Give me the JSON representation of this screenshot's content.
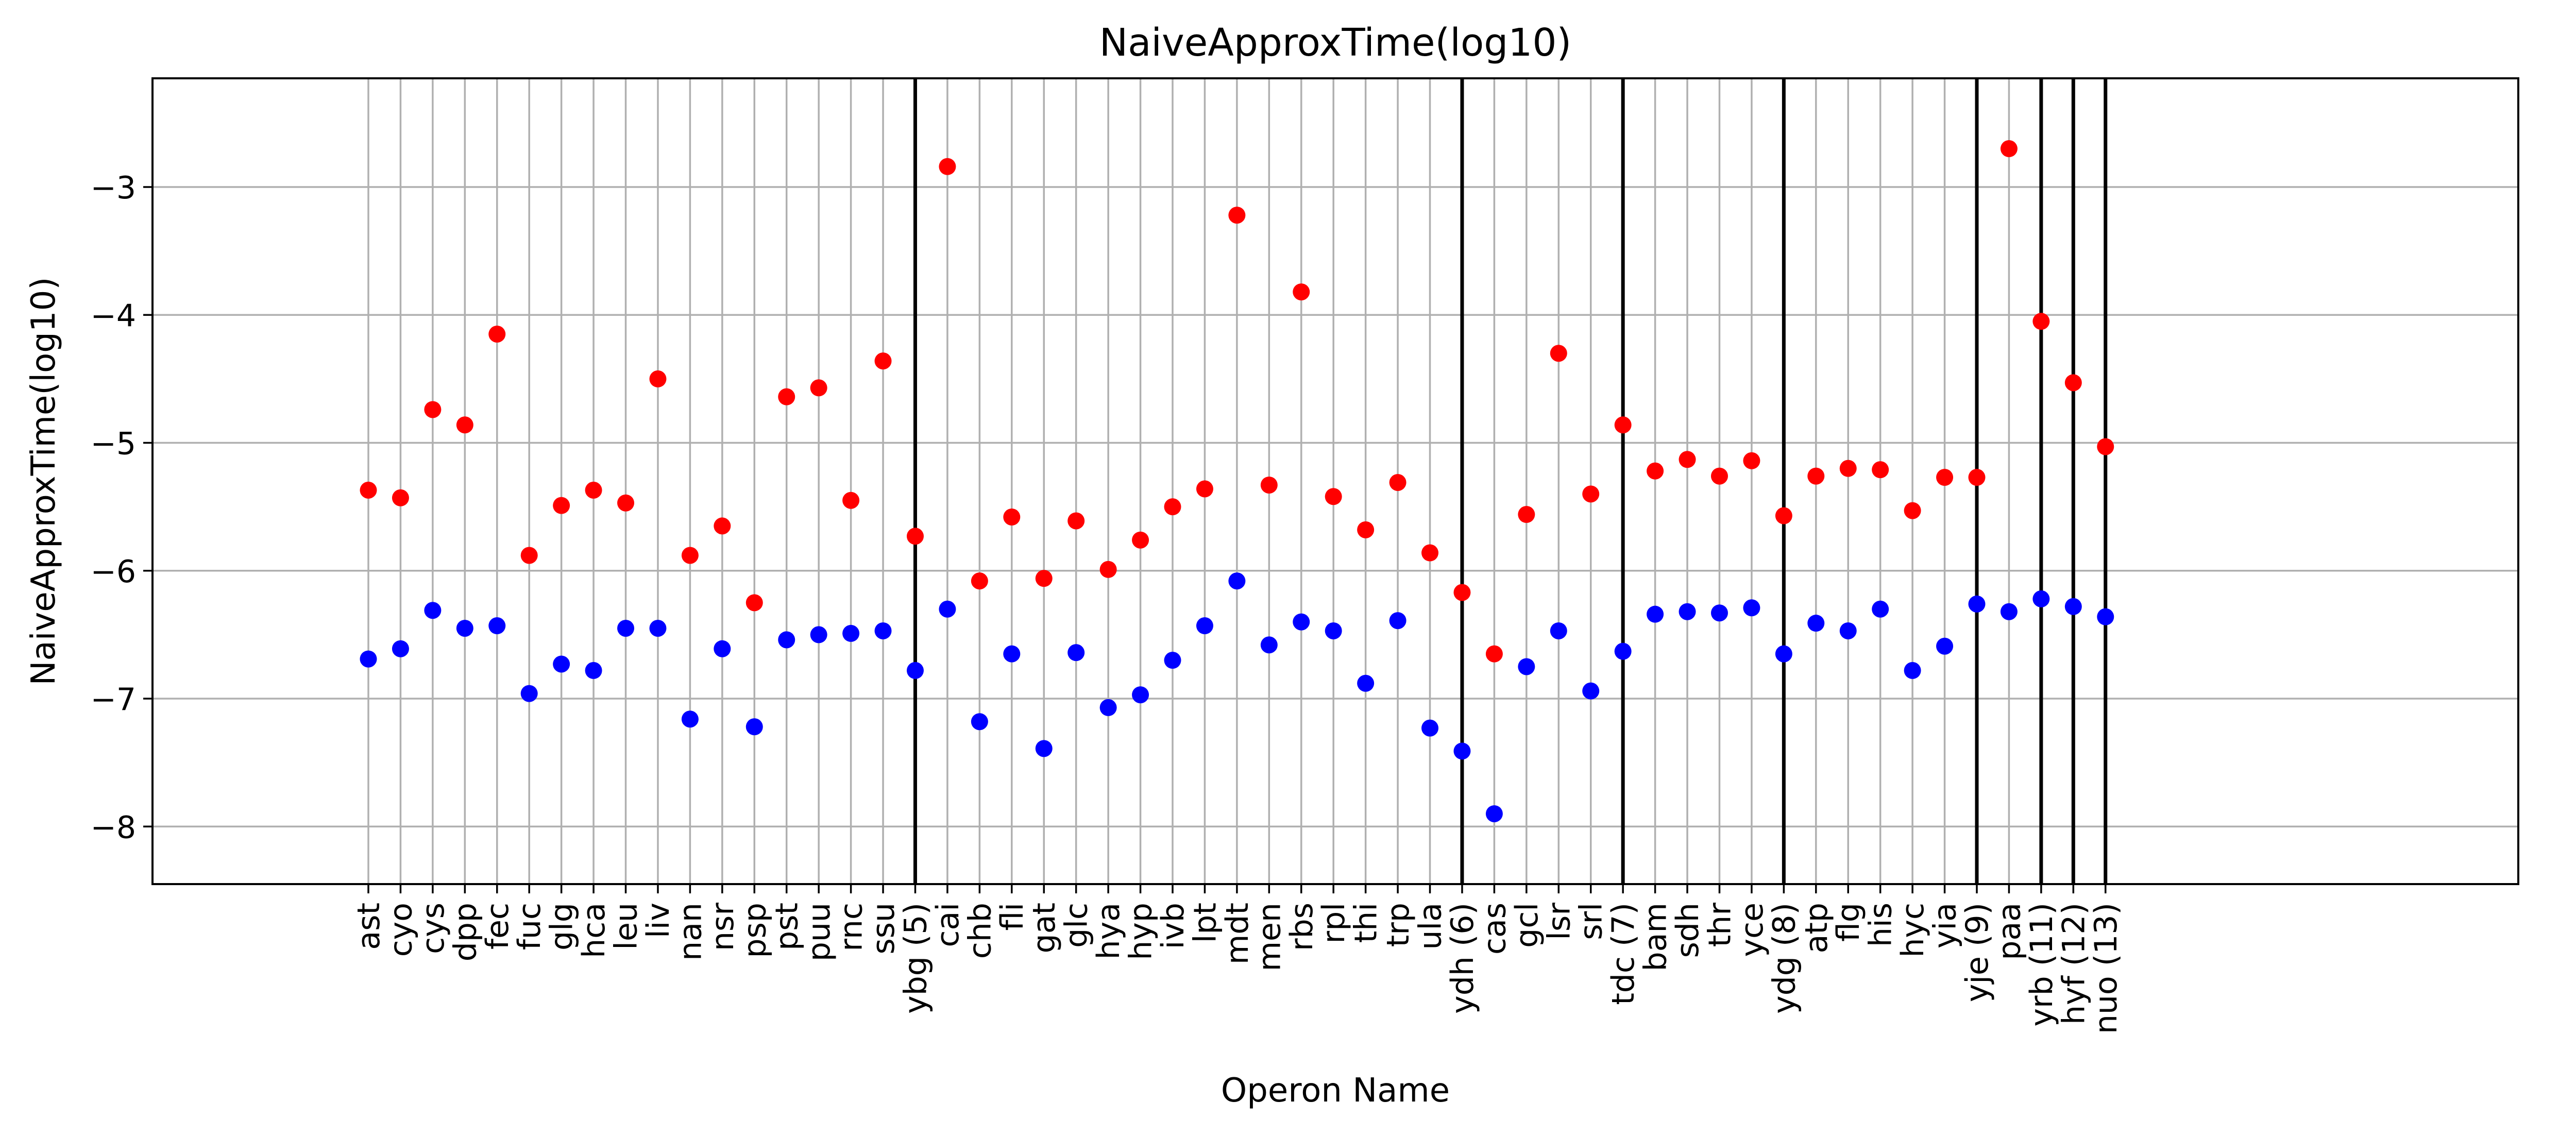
{
  "chart_data": {
    "type": "scatter",
    "title": "NaiveApproxTime(log10)",
    "xlabel": "Operon Name",
    "ylabel": "NaiveApproxTime(log10)",
    "ylim": [
      -8.45,
      -2.15
    ],
    "yticks": [
      -8,
      -7,
      -6,
      -5,
      -4,
      -3
    ],
    "ytick_labels": [
      "−8",
      "−7",
      "−6",
      "−5",
      "−4",
      "−3"
    ],
    "grid": true,
    "categories": [
      "ast",
      "cyo",
      "cys",
      "dpp",
      "fec",
      "fuc",
      "glg",
      "hca",
      "leu",
      "liv",
      "nan",
      "nsr",
      "psp",
      "pst",
      "puu",
      "rnc",
      "ssu",
      "ybg (5)",
      "cai",
      "chb",
      "fli",
      "gat",
      "glc",
      "hya",
      "hyp",
      "ivb",
      "lpt",
      "mdt",
      "men",
      "rbs",
      "rpl",
      "thi",
      "trp",
      "ula",
      "ydh (6)",
      "cas",
      "gcl",
      "lsr",
      "srl",
      "tdc (7)",
      "bam",
      "sdh",
      "thr",
      "yce",
      "ydg (8)",
      "atp",
      "flg",
      "his",
      "hyc",
      "yia",
      "yje (9)",
      "paa",
      "yrb (11)",
      "hyf (12)",
      "nuo (13)"
    ],
    "separators": [
      "ybg (5)",
      "ydh (6)",
      "tdc (7)",
      "ydg (8)",
      "yje (9)",
      "yrb (11)",
      "hyf (12)",
      "nuo (13)"
    ],
    "series": [
      {
        "color": "#ff0000",
        "values": [
          -5.37,
          -5.43,
          -4.74,
          -4.86,
          -4.15,
          -5.88,
          -5.49,
          -5.37,
          -5.47,
          -4.5,
          -5.88,
          -5.65,
          -6.25,
          -4.64,
          -4.57,
          -5.45,
          -4.36,
          -5.73,
          -2.84,
          -6.08,
          -5.58,
          -6.06,
          -5.61,
          -5.99,
          -5.76,
          -5.5,
          -5.36,
          -3.22,
          -5.33,
          -3.82,
          -5.42,
          -5.68,
          -5.31,
          -5.86,
          -6.17,
          -6.65,
          -5.56,
          -4.3,
          -5.4,
          -4.86,
          -5.22,
          -5.13,
          -5.26,
          -5.14,
          -5.57,
          -5.26,
          -5.2,
          -5.21,
          -5.53,
          -5.27,
          -5.27,
          -2.7,
          -4.05,
          -4.53,
          -5.03
        ]
      },
      {
        "color": "#0000ff",
        "values": [
          -6.69,
          -6.61,
          -6.31,
          -6.45,
          -6.43,
          -6.96,
          -6.73,
          -6.78,
          -6.45,
          -6.45,
          -7.16,
          -6.61,
          -7.22,
          -6.54,
          -6.5,
          -6.49,
          -6.47,
          -6.78,
          -6.3,
          -7.18,
          -6.65,
          -7.39,
          -6.64,
          -7.07,
          -6.97,
          -6.7,
          -6.43,
          -6.08,
          -6.58,
          -6.4,
          -6.47,
          -6.88,
          -6.39,
          -7.23,
          -7.41,
          -7.9,
          -6.75,
          -6.47,
          -6.94,
          -6.63,
          -6.34,
          -6.32,
          -6.33,
          -6.29,
          -6.65,
          -6.41,
          -6.47,
          -6.3,
          -6.78,
          -6.59,
          -6.26,
          -6.32,
          -6.22,
          -6.28,
          -6.36
        ]
      }
    ]
  }
}
